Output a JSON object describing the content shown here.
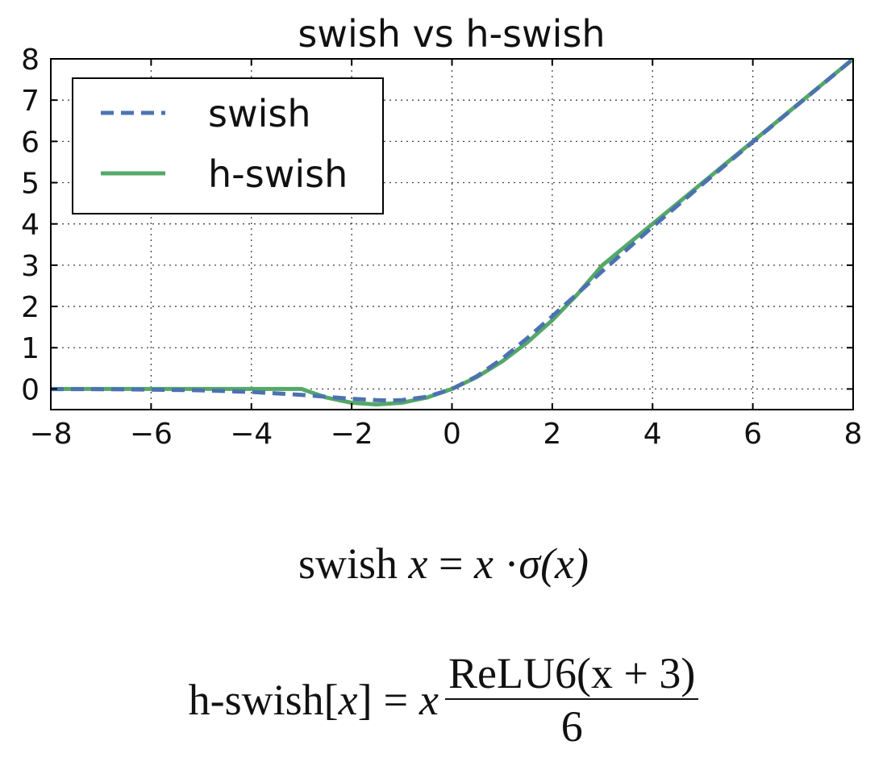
{
  "chart_data": {
    "type": "line",
    "title": "swish vs h-swish",
    "xlabel": "",
    "ylabel": "",
    "xlim": [
      -8,
      8
    ],
    "ylim": [
      -0.5,
      8
    ],
    "xticks": [
      -8,
      -6,
      -4,
      -2,
      0,
      2,
      4,
      6,
      8
    ],
    "xtick_labels": [
      "−8",
      "−6",
      "−4",
      "−2",
      "0",
      "2",
      "4",
      "6",
      "8"
    ],
    "yticks": [
      0,
      1,
      2,
      3,
      4,
      5,
      6,
      7,
      8
    ],
    "ytick_labels": [
      "0",
      "1",
      "2",
      "3",
      "4",
      "5",
      "6",
      "7",
      "8"
    ],
    "grid": true,
    "legend_position": "upper-left",
    "series": [
      {
        "name": "swish",
        "color": "#4c72b0",
        "style": "dashed",
        "x": [
          -8,
          -7,
          -6,
          -5,
          -4,
          -3,
          -2.5,
          -2,
          -1.5,
          -1.28,
          -1,
          -0.5,
          0,
          0.5,
          1,
          1.5,
          2,
          2.5,
          3,
          3.5,
          4,
          5,
          6,
          7,
          8
        ],
        "y": [
          -0.003,
          -0.006,
          -0.015,
          -0.033,
          -0.072,
          -0.142,
          -0.189,
          -0.238,
          -0.27,
          -0.278,
          -0.269,
          -0.189,
          0,
          0.311,
          0.731,
          1.23,
          1.762,
          2.31,
          2.858,
          3.395,
          3.928,
          4.967,
          5.985,
          6.994,
          7.997
        ]
      },
      {
        "name": "h-swish",
        "color": "#55a868",
        "style": "solid",
        "x": [
          -8,
          -4,
          -3,
          -2.5,
          -2,
          -1.5,
          -1,
          -0.5,
          0,
          0.5,
          1,
          1.5,
          2,
          2.5,
          3,
          4,
          5,
          6,
          7,
          8
        ],
        "y": [
          0,
          0,
          0,
          -0.208,
          -0.333,
          -0.375,
          -0.333,
          -0.208,
          0,
          0.292,
          0.667,
          1.125,
          1.667,
          2.292,
          3,
          4,
          5,
          6,
          7,
          8
        ]
      }
    ]
  },
  "formulas": {
    "swish": {
      "name": "swish",
      "var": "x",
      "eq": "=",
      "rhs_var": "x",
      "dot": "·",
      "sigma": "σ",
      "arg": "(x)"
    },
    "hswish": {
      "name": "h-swish",
      "arg_open": "[",
      "var": "x",
      "arg_close": "]",
      "eq": "=",
      "rhs_var": "x",
      "numerator": "ReLU6(x + 3)",
      "denominator": "6"
    }
  }
}
